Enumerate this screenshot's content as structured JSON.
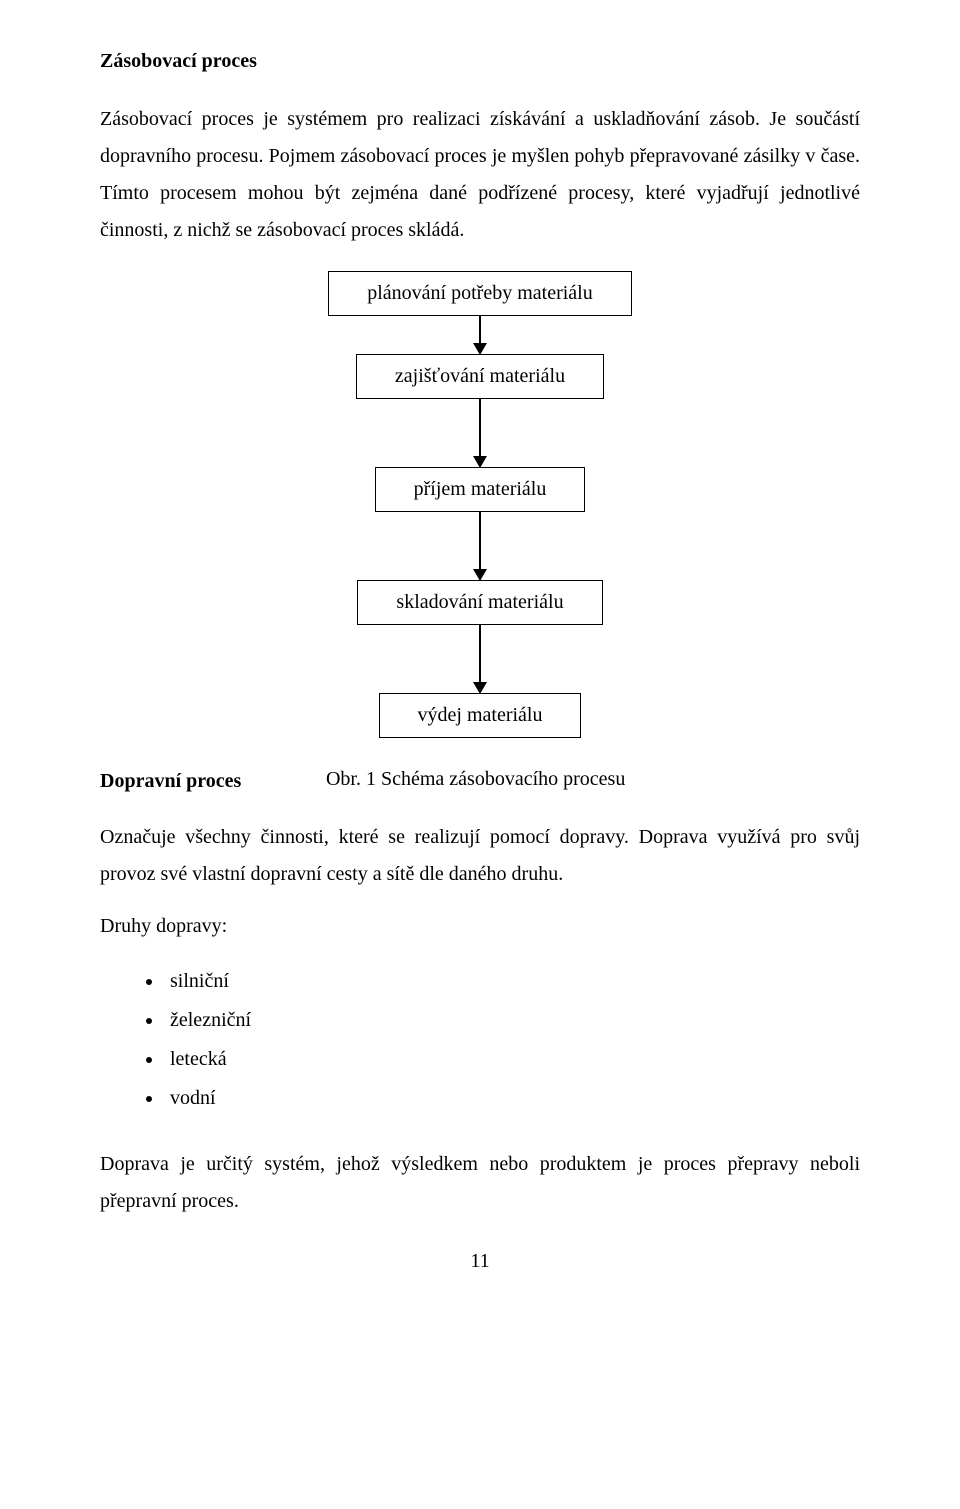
{
  "section_title": "Zásobovací proces",
  "intro_paragraph": "Zásobovací proces je systémem pro realizaci získávání a uskladňování zásob. Je součástí dopravního procesu. Pojmem zásobovací proces je myšlen pohyb přepravované zásilky v čase. Tímto procesem mohou být zejména dané podřízené procesy, které vyjadřují jednotlivé činnosti, z nichž se zásobovací proces skládá.",
  "flowchart": {
    "type": "flowchart",
    "nodes": [
      {
        "label": "plánování potřeby materiálu"
      },
      {
        "label": "zajišťování materiálu"
      },
      {
        "label": "příjem materiálu"
      },
      {
        "label": "skladování materiálu"
      },
      {
        "label": "výdej materiálu"
      }
    ],
    "arrow_heights": [
      38,
      68,
      68,
      68
    ],
    "node_border_color": "#000000",
    "node_fontsize": 20,
    "arrow_color": "#000000",
    "background_color": "#ffffff"
  },
  "figure_caption": "Obr. 1 Schéma zásobovacího procesu",
  "subsection_heading": "Dopravní proces",
  "transport_paragraph": "Označuje všechny činnosti, které se realizují pomocí dopravy. Doprava využívá pro svůj provoz své vlastní dopravní cesty a sítě dle daného druhu.",
  "list_heading": "Druhy dopravy:",
  "transport_types": [
    "silniční",
    "železniční",
    "letecká",
    "vodní"
  ],
  "closing_paragraph": "Doprava je určitý systém, jehož výsledkem nebo produktem je proces přepravy neboli přepravní proces.",
  "page_number": "11",
  "colors": {
    "text": "#000000",
    "background": "#ffffff"
  },
  "typography": {
    "family": "Times New Roman",
    "body_fontsize": 20,
    "heading_weight": "bold"
  }
}
